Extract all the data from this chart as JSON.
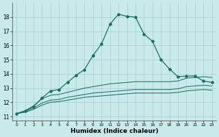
{
  "xlabel": "Humidex (Indice chaleur)",
  "xlim": [
    -0.5,
    23.5
  ],
  "ylim": [
    10.7,
    19.0
  ],
  "yticks": [
    11,
    12,
    13,
    14,
    15,
    16,
    17,
    18
  ],
  "xticks": [
    0,
    1,
    2,
    3,
    4,
    5,
    6,
    7,
    8,
    9,
    10,
    11,
    12,
    13,
    14,
    15,
    16,
    17,
    18,
    19,
    20,
    21,
    22,
    23
  ],
  "bg_color": "#c8eaea",
  "grid_color": "#a8cccc",
  "line_color": "#1a6e64",
  "curve_main_x": [
    0,
    1,
    2,
    3,
    4,
    5,
    6,
    7,
    8,
    9,
    10,
    11,
    12,
    13,
    14,
    15,
    16,
    17,
    18,
    19,
    20,
    21,
    22,
    23
  ],
  "curve_main_y": [
    11.2,
    11.4,
    11.7,
    12.3,
    12.8,
    12.9,
    13.4,
    13.9,
    14.3,
    15.3,
    16.1,
    17.5,
    18.2,
    18.05,
    18.0,
    16.8,
    16.3,
    15.0,
    14.35,
    13.8,
    13.85,
    13.85,
    13.5,
    13.4
  ],
  "curve2_x": [
    0,
    1,
    2,
    3,
    4,
    5,
    6,
    7,
    8,
    9,
    10,
    11,
    12,
    13,
    14,
    15,
    16,
    17,
    18,
    19,
    20,
    21,
    22,
    23
  ],
  "curve2_y": [
    11.2,
    11.4,
    11.75,
    12.25,
    12.5,
    12.55,
    12.7,
    12.85,
    13.0,
    13.1,
    13.2,
    13.3,
    13.35,
    13.4,
    13.45,
    13.45,
    13.45,
    13.45,
    13.45,
    13.5,
    13.7,
    13.75,
    13.8,
    13.75
  ],
  "curve3_x": [
    0,
    1,
    2,
    3,
    4,
    5,
    6,
    7,
    8,
    9,
    10,
    11,
    12,
    13,
    14,
    15,
    16,
    17,
    18,
    19,
    20,
    21,
    22,
    23
  ],
  "curve3_y": [
    11.2,
    11.35,
    11.6,
    11.95,
    12.15,
    12.2,
    12.35,
    12.45,
    12.55,
    12.65,
    12.7,
    12.75,
    12.8,
    12.85,
    12.9,
    12.9,
    12.9,
    12.9,
    12.9,
    12.95,
    13.1,
    13.15,
    13.2,
    13.15
  ],
  "curve4_x": [
    0,
    1,
    2,
    3,
    4,
    5,
    6,
    7,
    8,
    9,
    10,
    11,
    12,
    13,
    14,
    15,
    16,
    17,
    18,
    19,
    20,
    21,
    22,
    23
  ],
  "curve4_y": [
    11.2,
    11.3,
    11.5,
    11.8,
    12.0,
    12.05,
    12.15,
    12.25,
    12.35,
    12.4,
    12.45,
    12.5,
    12.55,
    12.6,
    12.65,
    12.65,
    12.65,
    12.65,
    12.65,
    12.7,
    12.8,
    12.85,
    12.9,
    12.85
  ]
}
